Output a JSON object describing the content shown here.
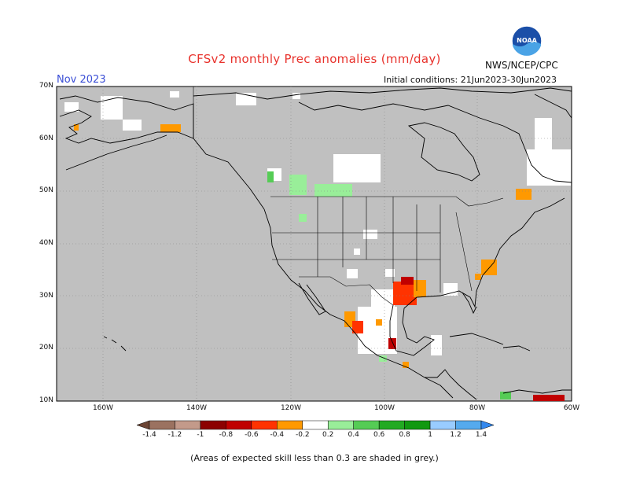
{
  "header": {
    "title": "CFSv2 monthly Prec anomalies (mm/day)",
    "month": "Nov 2023",
    "initial_conditions": "Initial conditions: 21Jun2023-30Jun2023",
    "agency": "NWS/NCEP/CPC",
    "logo_text": "NOAA"
  },
  "map": {
    "lat_labels": [
      "70N",
      "60N",
      "50N",
      "40N",
      "30N",
      "20N",
      "10N"
    ],
    "lon_labels": [
      "160W",
      "140W",
      "120W",
      "100W",
      "80W",
      "60W"
    ],
    "background_color": "#c0c0c0",
    "land_outline_color": "#000000"
  },
  "colorbar": {
    "tick_labels": [
      "-1.4",
      "-1.2",
      "-1",
      "-0.8",
      "-0.6",
      "-0.4",
      "-0.2",
      "0.2",
      "0.4",
      "0.6",
      "0.8",
      "1",
      "1.2",
      "1.4"
    ],
    "colors": [
      "#6b4433",
      "#9b7260",
      "#c39a8a",
      "#8c0000",
      "#c00000",
      "#ff3300",
      "#ff9900",
      "#ffffff",
      "#99ee99",
      "#55cc55",
      "#22aa22",
      "#119911",
      "#99ccff",
      "#55aaee",
      "#3388ee"
    ]
  },
  "footer": {
    "note": "(Areas of expected skill less than 0.3 are shaded in grey.)"
  }
}
